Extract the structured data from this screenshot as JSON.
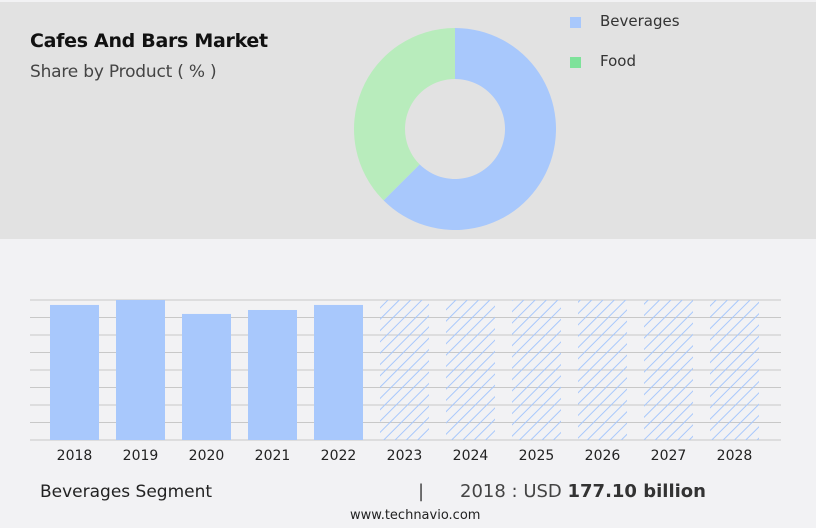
{
  "header": {
    "title": "Cafes And Bars Market",
    "subtitle": "Share by Product ( % )"
  },
  "legend": {
    "items": [
      {
        "label": "Beverages",
        "color": "#a8c8fc"
      },
      {
        "label": "Food",
        "color": "#7ee29a"
      }
    ]
  },
  "footer": {
    "segment_label": "Beverages Segment",
    "separator": "|",
    "year_prefix": "2018 : USD ",
    "value_text": "177.10 billion",
    "website": "www.technavio.com"
  },
  "colors": {
    "top_bg": "#e2e2e2",
    "bottom_bg": "#f2f2f4",
    "beverages_donut": "#a8c8fc",
    "food_donut": "#b8ecbc",
    "bar": "#a8c8fc",
    "grid": "#c8c8c8"
  },
  "chart_data": [
    {
      "type": "pie",
      "title": "Cafes And Bars Market",
      "subtitle": "Share by Product ( % )",
      "donut": true,
      "categories": [
        "Beverages",
        "Food"
      ],
      "values": [
        62.5,
        37.5
      ],
      "legend_position": "right"
    },
    {
      "type": "bar",
      "title": "Beverages Segment",
      "categories": [
        "2018",
        "2019",
        "2020",
        "2021",
        "2022",
        "2023",
        "2024",
        "2025",
        "2026",
        "2027",
        "2028"
      ],
      "values": [
        177.1,
        183.6,
        165.3,
        170.5,
        177.1,
        null,
        null,
        null,
        null,
        null,
        null
      ],
      "forecast": [
        false,
        false,
        false,
        false,
        false,
        true,
        true,
        true,
        true,
        true,
        true
      ],
      "annotation": "2018 : USD 177.10 billion",
      "xlabel": "",
      "ylabel": "",
      "grid": true,
      "gridlines": 9
    }
  ]
}
